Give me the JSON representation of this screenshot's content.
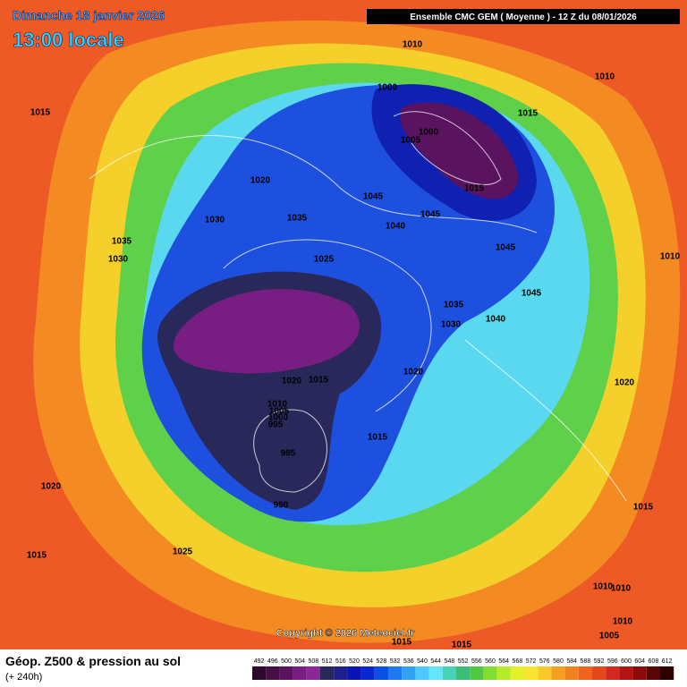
{
  "header": {
    "date": "Dimanche 18 janvier 2026",
    "time": "13:00 locale",
    "model": "Ensemble CMC GEM  ( Moyenne )  -  12 Z du 08/01/2026"
  },
  "isobar_labels": [
    1010,
    1010,
    1000,
    1015,
    1000,
    1005,
    1015,
    1020,
    1015,
    1045,
    1045,
    1030,
    1035,
    1040,
    1035,
    1045,
    1030,
    1010,
    1025,
    1045,
    1035,
    1040,
    1030,
    1020,
    1020,
    1015,
    1020,
    1010,
    1005,
    1000,
    995,
    1015,
    985,
    1020,
    990,
    1015,
    1025,
    1015,
    1010,
    1010,
    1010,
    1005,
    1015,
    1015
  ],
  "footer": {
    "copyright": "Copyright © 2026 Meteociel.fr",
    "product": "Géop. Z500 & pression au sol",
    "lead": "(+ 240h)"
  },
  "legend": {
    "levels": [
      492,
      496,
      500,
      504,
      508,
      512,
      516,
      520,
      524,
      528,
      532,
      536,
      540,
      544,
      548,
      552,
      556,
      560,
      564,
      568,
      572,
      576,
      580,
      584,
      588,
      592,
      596,
      600,
      604,
      608,
      612
    ],
    "colors": [
      "#2d0a2d",
      "#460f46",
      "#5a145f",
      "#781e82",
      "#8c2896",
      "#28285a",
      "#1e1e8c",
      "#0a14b4",
      "#0a28d2",
      "#0a50e6",
      "#1e78f0",
      "#32a0f5",
      "#50c8fa",
      "#64e6fa",
      "#46d2b4",
      "#3cbe78",
      "#50c846",
      "#82dc32",
      "#b4ec28",
      "#e6f028",
      "#fae632",
      "#fac828",
      "#f5a01e",
      "#f0821e",
      "#f0641e",
      "#e6461e",
      "#d2281e",
      "#b41414",
      "#8c0a0a",
      "#5a0505",
      "#2d0000"
    ]
  }
}
